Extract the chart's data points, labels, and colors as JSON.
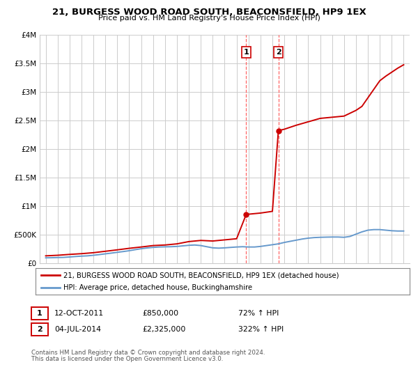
{
  "title": "21, BURGESS WOOD ROAD SOUTH, BEACONSFIELD, HP9 1EX",
  "subtitle": "Price paid vs. HM Land Registry's House Price Index (HPI)",
  "legend_line1": "21, BURGESS WOOD ROAD SOUTH, BEACONSFIELD, HP9 1EX (detached house)",
  "legend_line2": "HPI: Average price, detached house, Buckinghamshire",
  "footnote1": "Contains HM Land Registry data © Crown copyright and database right 2024.",
  "footnote2": "This data is licensed under the Open Government Licence v3.0.",
  "sale1_label": "1",
  "sale1_date": "12-OCT-2011",
  "sale1_price": "£850,000",
  "sale1_pct": "72% ↑ HPI",
  "sale1_x": 2011.79,
  "sale1_y": 850000,
  "sale2_label": "2",
  "sale2_date": "04-JUL-2014",
  "sale2_price": "£2,325,000",
  "sale2_pct": "322% ↑ HPI",
  "sale2_x": 2014.5,
  "sale2_y": 2325000,
  "red_color": "#cc0000",
  "blue_color": "#6699cc",
  "dashed_color": "#ff6666",
  "ylim": [
    0,
    4000000
  ],
  "xlim": [
    1994.5,
    2025.5
  ],
  "background_color": "#ffffff",
  "grid_color": "#cccccc",
  "hpi_x": [
    1995,
    1995.5,
    1996,
    1996.5,
    1997,
    1997.5,
    1998,
    1998.5,
    1999,
    1999.5,
    2000,
    2000.5,
    2001,
    2001.5,
    2002,
    2002.5,
    2003,
    2003.5,
    2004,
    2004.5,
    2005,
    2005.5,
    2006,
    2006.5,
    2007,
    2007.5,
    2008,
    2008.5,
    2009,
    2009.5,
    2010,
    2010.5,
    2011,
    2011.5,
    2012,
    2012.5,
    2013,
    2013.5,
    2014,
    2014.5,
    2015,
    2015.5,
    2016,
    2016.5,
    2017,
    2017.5,
    2018,
    2018.5,
    2019,
    2019.5,
    2020,
    2020.5,
    2021,
    2021.5,
    2022,
    2022.5,
    2023,
    2023.5,
    2024,
    2024.5,
    2025
  ],
  "hpi_y": [
    95000,
    97000,
    100000,
    103000,
    110000,
    118000,
    125000,
    130000,
    140000,
    152000,
    165000,
    178000,
    192000,
    205000,
    220000,
    238000,
    255000,
    268000,
    278000,
    285000,
    288000,
    290000,
    295000,
    305000,
    315000,
    320000,
    310000,
    290000,
    270000,
    265000,
    270000,
    278000,
    285000,
    290000,
    285000,
    285000,
    295000,
    310000,
    325000,
    340000,
    365000,
    385000,
    405000,
    425000,
    440000,
    450000,
    455000,
    458000,
    460000,
    460000,
    455000,
    470000,
    510000,
    550000,
    580000,
    590000,
    590000,
    580000,
    570000,
    565000,
    565000
  ],
  "prop_x": [
    1995,
    1996,
    1997,
    1998,
    1999,
    2000,
    2001,
    2002,
    2003,
    2004,
    2005,
    2006,
    2007,
    2008,
    2009,
    2010,
    2011.0,
    2011.79,
    2012,
    2012.5,
    2013,
    2013.5,
    2014,
    2014.5,
    2015,
    2016,
    2017,
    2018,
    2019,
    2020,
    2021,
    2021.5,
    2022,
    2022.5,
    2023,
    2023.5,
    2024,
    2024.5,
    2025
  ],
  "prop_y": [
    130000,
    140000,
    155000,
    168000,
    185000,
    210000,
    235000,
    262000,
    285000,
    310000,
    320000,
    340000,
    380000,
    400000,
    390000,
    410000,
    430000,
    850000,
    860000,
    870000,
    880000,
    895000,
    910000,
    2325000,
    2350000,
    2420000,
    2480000,
    2540000,
    2560000,
    2580000,
    2680000,
    2750000,
    2900000,
    3050000,
    3200000,
    3280000,
    3350000,
    3420000,
    3480000
  ]
}
